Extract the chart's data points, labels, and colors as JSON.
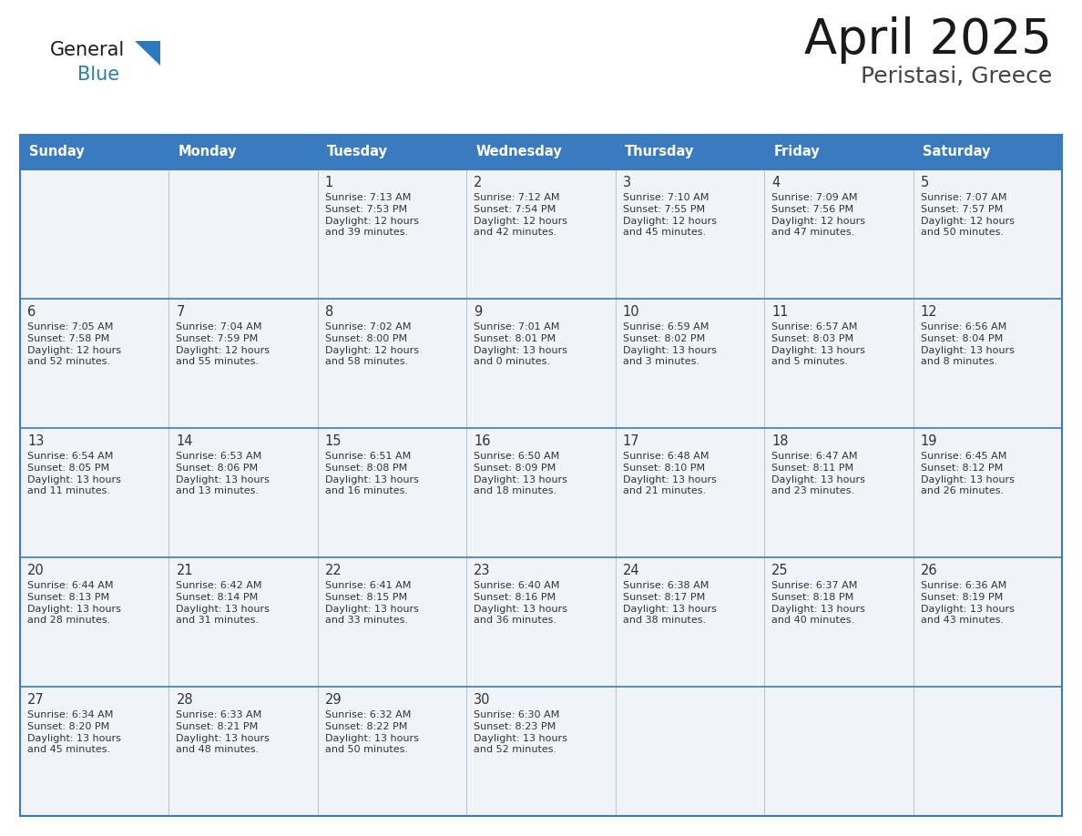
{
  "title": "April 2025",
  "subtitle": "Peristasi, Greece",
  "days_of_week": [
    "Sunday",
    "Monday",
    "Tuesday",
    "Wednesday",
    "Thursday",
    "Friday",
    "Saturday"
  ],
  "header_bg": "#3a7bbf",
  "header_text": "#ffffff",
  "cell_bg": "#f0f4f8",
  "border_color": "#3a7bbf",
  "text_color": "#333333",
  "logo_general_color": "#1a1a1a",
  "logo_blue_color": "#2a7abf",
  "title_color": "#1a1a1a",
  "subtitle_color": "#444444",
  "calendar": [
    [
      {
        "day": "",
        "sunrise": "",
        "sunset": "",
        "daylight": ""
      },
      {
        "day": "",
        "sunrise": "",
        "sunset": "",
        "daylight": ""
      },
      {
        "day": "1",
        "sunrise": "Sunrise: 7:13 AM",
        "sunset": "Sunset: 7:53 PM",
        "daylight": "Daylight: 12 hours\nand 39 minutes."
      },
      {
        "day": "2",
        "sunrise": "Sunrise: 7:12 AM",
        "sunset": "Sunset: 7:54 PM",
        "daylight": "Daylight: 12 hours\nand 42 minutes."
      },
      {
        "day": "3",
        "sunrise": "Sunrise: 7:10 AM",
        "sunset": "Sunset: 7:55 PM",
        "daylight": "Daylight: 12 hours\nand 45 minutes."
      },
      {
        "day": "4",
        "sunrise": "Sunrise: 7:09 AM",
        "sunset": "Sunset: 7:56 PM",
        "daylight": "Daylight: 12 hours\nand 47 minutes."
      },
      {
        "day": "5",
        "sunrise": "Sunrise: 7:07 AM",
        "sunset": "Sunset: 7:57 PM",
        "daylight": "Daylight: 12 hours\nand 50 minutes."
      }
    ],
    [
      {
        "day": "6",
        "sunrise": "Sunrise: 7:05 AM",
        "sunset": "Sunset: 7:58 PM",
        "daylight": "Daylight: 12 hours\nand 52 minutes."
      },
      {
        "day": "7",
        "sunrise": "Sunrise: 7:04 AM",
        "sunset": "Sunset: 7:59 PM",
        "daylight": "Daylight: 12 hours\nand 55 minutes."
      },
      {
        "day": "8",
        "sunrise": "Sunrise: 7:02 AM",
        "sunset": "Sunset: 8:00 PM",
        "daylight": "Daylight: 12 hours\nand 58 minutes."
      },
      {
        "day": "9",
        "sunrise": "Sunrise: 7:01 AM",
        "sunset": "Sunset: 8:01 PM",
        "daylight": "Daylight: 13 hours\nand 0 minutes."
      },
      {
        "day": "10",
        "sunrise": "Sunrise: 6:59 AM",
        "sunset": "Sunset: 8:02 PM",
        "daylight": "Daylight: 13 hours\nand 3 minutes."
      },
      {
        "day": "11",
        "sunrise": "Sunrise: 6:57 AM",
        "sunset": "Sunset: 8:03 PM",
        "daylight": "Daylight: 13 hours\nand 5 minutes."
      },
      {
        "day": "12",
        "sunrise": "Sunrise: 6:56 AM",
        "sunset": "Sunset: 8:04 PM",
        "daylight": "Daylight: 13 hours\nand 8 minutes."
      }
    ],
    [
      {
        "day": "13",
        "sunrise": "Sunrise: 6:54 AM",
        "sunset": "Sunset: 8:05 PM",
        "daylight": "Daylight: 13 hours\nand 11 minutes."
      },
      {
        "day": "14",
        "sunrise": "Sunrise: 6:53 AM",
        "sunset": "Sunset: 8:06 PM",
        "daylight": "Daylight: 13 hours\nand 13 minutes."
      },
      {
        "day": "15",
        "sunrise": "Sunrise: 6:51 AM",
        "sunset": "Sunset: 8:08 PM",
        "daylight": "Daylight: 13 hours\nand 16 minutes."
      },
      {
        "day": "16",
        "sunrise": "Sunrise: 6:50 AM",
        "sunset": "Sunset: 8:09 PM",
        "daylight": "Daylight: 13 hours\nand 18 minutes."
      },
      {
        "day": "17",
        "sunrise": "Sunrise: 6:48 AM",
        "sunset": "Sunset: 8:10 PM",
        "daylight": "Daylight: 13 hours\nand 21 minutes."
      },
      {
        "day": "18",
        "sunrise": "Sunrise: 6:47 AM",
        "sunset": "Sunset: 8:11 PM",
        "daylight": "Daylight: 13 hours\nand 23 minutes."
      },
      {
        "day": "19",
        "sunrise": "Sunrise: 6:45 AM",
        "sunset": "Sunset: 8:12 PM",
        "daylight": "Daylight: 13 hours\nand 26 minutes."
      }
    ],
    [
      {
        "day": "20",
        "sunrise": "Sunrise: 6:44 AM",
        "sunset": "Sunset: 8:13 PM",
        "daylight": "Daylight: 13 hours\nand 28 minutes."
      },
      {
        "day": "21",
        "sunrise": "Sunrise: 6:42 AM",
        "sunset": "Sunset: 8:14 PM",
        "daylight": "Daylight: 13 hours\nand 31 minutes."
      },
      {
        "day": "22",
        "sunrise": "Sunrise: 6:41 AM",
        "sunset": "Sunset: 8:15 PM",
        "daylight": "Daylight: 13 hours\nand 33 minutes."
      },
      {
        "day": "23",
        "sunrise": "Sunrise: 6:40 AM",
        "sunset": "Sunset: 8:16 PM",
        "daylight": "Daylight: 13 hours\nand 36 minutes."
      },
      {
        "day": "24",
        "sunrise": "Sunrise: 6:38 AM",
        "sunset": "Sunset: 8:17 PM",
        "daylight": "Daylight: 13 hours\nand 38 minutes."
      },
      {
        "day": "25",
        "sunrise": "Sunrise: 6:37 AM",
        "sunset": "Sunset: 8:18 PM",
        "daylight": "Daylight: 13 hours\nand 40 minutes."
      },
      {
        "day": "26",
        "sunrise": "Sunrise: 6:36 AM",
        "sunset": "Sunset: 8:19 PM",
        "daylight": "Daylight: 13 hours\nand 43 minutes."
      }
    ],
    [
      {
        "day": "27",
        "sunrise": "Sunrise: 6:34 AM",
        "sunset": "Sunset: 8:20 PM",
        "daylight": "Daylight: 13 hours\nand 45 minutes."
      },
      {
        "day": "28",
        "sunrise": "Sunrise: 6:33 AM",
        "sunset": "Sunset: 8:21 PM",
        "daylight": "Daylight: 13 hours\nand 48 minutes."
      },
      {
        "day": "29",
        "sunrise": "Sunrise: 6:32 AM",
        "sunset": "Sunset: 8:22 PM",
        "daylight": "Daylight: 13 hours\nand 50 minutes."
      },
      {
        "day": "30",
        "sunrise": "Sunrise: 6:30 AM",
        "sunset": "Sunset: 8:23 PM",
        "daylight": "Daylight: 13 hours\nand 52 minutes."
      },
      {
        "day": "",
        "sunrise": "",
        "sunset": "",
        "daylight": ""
      },
      {
        "day": "",
        "sunrise": "",
        "sunset": "",
        "daylight": ""
      },
      {
        "day": "",
        "sunrise": "",
        "sunset": "",
        "daylight": ""
      }
    ]
  ]
}
